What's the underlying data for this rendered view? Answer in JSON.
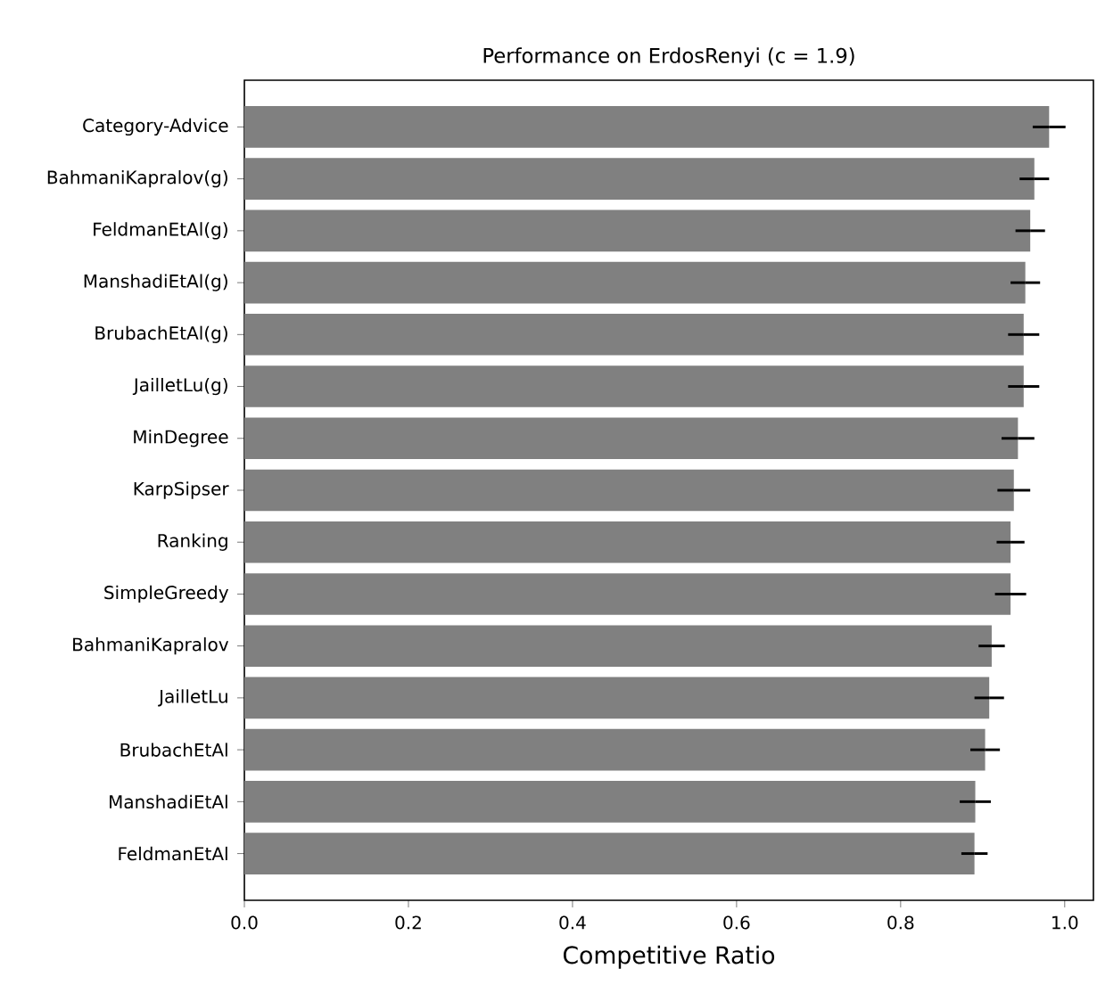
{
  "chart_data": {
    "type": "bar",
    "orientation": "horizontal",
    "title": "Performance on ErdosRenyi (c = 1.9)",
    "xlabel": "Competitive Ratio",
    "categories": [
      "Category-Advice",
      "BahmaniKapralov(g)",
      "FeldmanEtAl(g)",
      "ManshadiEtAl(g)",
      "BrubachEtAl(g)",
      "JailletLu(g)",
      "MinDegree",
      "KarpSipser",
      "Ranking",
      "SimpleGreedy",
      "BahmaniKapralov",
      "JailletLu",
      "BrubachEtAl",
      "ManshadiEtAl",
      "FeldmanEtAl"
    ],
    "values": [
      0.981,
      0.963,
      0.958,
      0.952,
      0.95,
      0.95,
      0.943,
      0.938,
      0.934,
      0.934,
      0.911,
      0.908,
      0.903,
      0.891,
      0.89
    ],
    "errors": [
      0.02,
      0.018,
      0.018,
      0.018,
      0.019,
      0.019,
      0.02,
      0.02,
      0.017,
      0.019,
      0.016,
      0.018,
      0.018,
      0.019,
      0.016
    ],
    "color": "#808080",
    "xlim": [
      0,
      1.035
    ],
    "xticks": [
      {
        "value": 0,
        "label": "0.0"
      },
      0.2,
      0.4,
      0.6,
      0.8,
      {
        "value": 1,
        "label": "1.0"
      }
    ]
  }
}
